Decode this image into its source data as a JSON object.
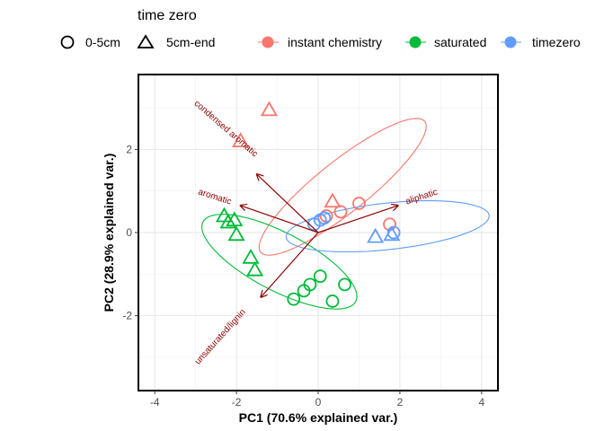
{
  "chart_data": {
    "type": "scatter",
    "title": "",
    "xlabel": "PC1 (70.6% explained var.)",
    "ylabel": "PC2 (28.9% explained var.)",
    "xlim": [
      -4.4,
      4.4
    ],
    "ylim": [
      -3.8,
      3.8
    ],
    "xticks": [
      -4,
      -2,
      0,
      2,
      4
    ],
    "yticks": [
      -2,
      0,
      2
    ],
    "xtick_labels": [
      "-4",
      "-2",
      "0",
      "2",
      "4"
    ],
    "ytick_labels": [
      "-2",
      "0",
      "2"
    ],
    "grid": true,
    "legend": {
      "position": "top",
      "shape_title": "time zero",
      "shape_entries": [
        {
          "label": "0-5cm",
          "shape": "circle"
        },
        {
          "label": "5cm-end",
          "shape": "triangle"
        }
      ],
      "color_entries": [
        {
          "label": "instant chemistry",
          "color": "#F8766D"
        },
        {
          "label": "saturated",
          "color": "#00BA38"
        },
        {
          "label": "timezero",
          "color": "#619CFF"
        }
      ]
    },
    "series": [
      {
        "name": "instant chemistry",
        "color": "#F8766D",
        "points": [
          {
            "x": -1.2,
            "y": 2.95,
            "shape": "triangle"
          },
          {
            "x": -1.9,
            "y": 2.2,
            "shape": "triangle"
          },
          {
            "x": 0.35,
            "y": 0.75,
            "shape": "triangle"
          },
          {
            "x": 1.0,
            "y": 0.7,
            "shape": "circle"
          },
          {
            "x": 0.55,
            "y": 0.5,
            "shape": "circle"
          },
          {
            "x": 0.2,
            "y": 0.4,
            "shape": "circle"
          },
          {
            "x": 1.75,
            "y": 0.2,
            "shape": "circle"
          }
        ],
        "ellipse": {
          "cx": 0.6,
          "cy": 1.1,
          "rx": 2.55,
          "ry": 0.62,
          "angle_deg": 38
        }
      },
      {
        "name": "saturated",
        "color": "#00BA38",
        "points": [
          {
            "x": -2.3,
            "y": 0.4,
            "shape": "triangle"
          },
          {
            "x": -2.05,
            "y": 0.3,
            "shape": "triangle"
          },
          {
            "x": -2.2,
            "y": 0.25,
            "shape": "triangle"
          },
          {
            "x": -2.0,
            "y": -0.05,
            "shape": "triangle"
          },
          {
            "x": -1.65,
            "y": -0.6,
            "shape": "triangle"
          },
          {
            "x": -1.55,
            "y": -0.9,
            "shape": "triangle"
          },
          {
            "x": 0.05,
            "y": -1.05,
            "shape": "circle"
          },
          {
            "x": 0.65,
            "y": -1.25,
            "shape": "circle"
          },
          {
            "x": -0.2,
            "y": -1.25,
            "shape": "circle"
          },
          {
            "x": -0.35,
            "y": -1.4,
            "shape": "circle"
          },
          {
            "x": -0.6,
            "y": -1.6,
            "shape": "circle"
          },
          {
            "x": 0.35,
            "y": -1.65,
            "shape": "circle"
          }
        ],
        "ellipse": {
          "cx": -0.95,
          "cy": -0.7,
          "rx": 2.1,
          "ry": 0.7,
          "angle_deg": -27
        }
      },
      {
        "name": "timezero",
        "color": "#619CFF",
        "points": [
          {
            "x": -0.1,
            "y": 0.2,
            "shape": "circle"
          },
          {
            "x": 0.05,
            "y": 0.3,
            "shape": "circle"
          },
          {
            "x": 0.15,
            "y": 0.35,
            "shape": "circle"
          },
          {
            "x": 1.4,
            "y": -0.1,
            "shape": "triangle"
          },
          {
            "x": 1.8,
            "y": -0.05,
            "shape": "triangle"
          },
          {
            "x": 1.85,
            "y": 0.0,
            "shape": "circle"
          }
        ],
        "ellipse": {
          "cx": 1.7,
          "cy": 0.15,
          "rx": 2.5,
          "ry": 0.56,
          "angle_deg": 6
        }
      }
    ],
    "loadings": [
      {
        "label": "condensed aromatic",
        "x": -1.5,
        "y": 1.4,
        "label_x": -2.3,
        "label_y": 2.45,
        "angle_deg": 41
      },
      {
        "label": "aromatic",
        "x": -1.9,
        "y": 0.65,
        "label_x": -2.55,
        "label_y": 0.8,
        "angle_deg": 18
      },
      {
        "label": "aliphatic",
        "x": 1.95,
        "y": 0.65,
        "label_x": 2.55,
        "label_y": 0.8,
        "angle_deg": -18
      },
      {
        "label": "unsaturated/lignin",
        "x": -1.4,
        "y": -1.55,
        "label_x": -2.35,
        "label_y": -2.55,
        "angle_deg": -48
      }
    ]
  }
}
